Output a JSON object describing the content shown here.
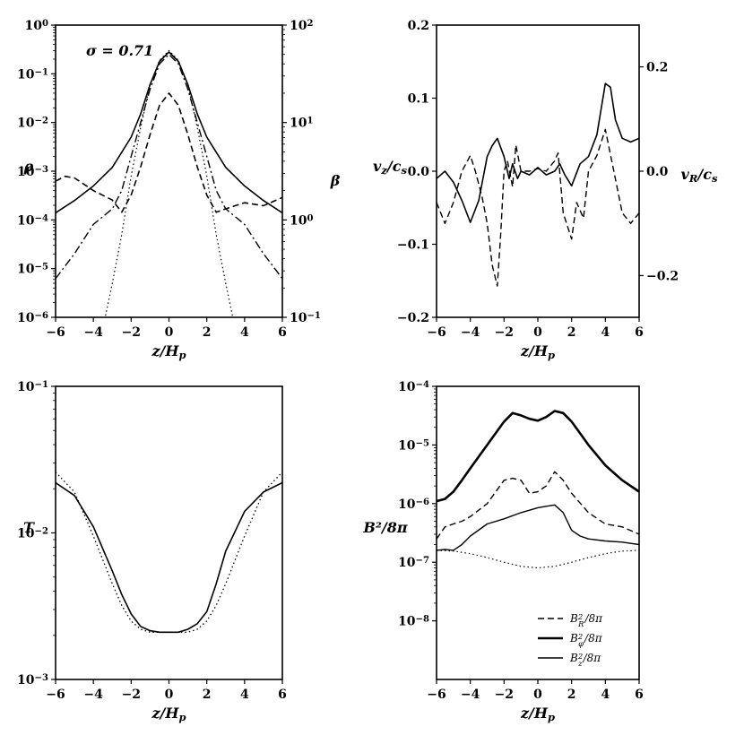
{
  "chart_data": [
    {
      "id": "density_beta",
      "type": "line",
      "xlabel": "z/H_p",
      "ylabel": "ρ",
      "ylabel_right": "β",
      "annotation": "σ = 0.71",
      "xlim": [
        -6,
        6
      ],
      "xticks": [
        -6,
        -4,
        -2,
        0,
        2,
        4,
        6
      ],
      "xtick_labels": [
        "−6",
        "−4",
        "−2",
        "0",
        "2",
        "4",
        "6"
      ],
      "yscale": "log",
      "ylim_exp": [
        -6,
        0
      ],
      "yticks_exp": [
        -6,
        -5,
        -4,
        -3,
        -2,
        -1,
        0
      ],
      "ytick_labels": [
        "10^-6",
        "10^-5",
        "10^-4",
        "10^-3",
        "10^-2",
        "10^-1",
        "10^0"
      ],
      "y2scale": "log",
      "y2lim_exp": [
        -1,
        2
      ],
      "y2ticks_exp": [
        -1,
        0,
        1,
        2
      ],
      "y2tick_labels": [
        "10^-1",
        "10^0",
        "10^1",
        "10^2"
      ],
      "series": [
        {
          "name": "rho",
          "style": "solid",
          "width": 1.6,
          "axis": "left",
          "log": true,
          "x": [
            -6,
            -5,
            -4,
            -3,
            -2,
            -1.5,
            -1,
            -0.5,
            0,
            0.5,
            1,
            1.5,
            2,
            3,
            4,
            5,
            6
          ],
          "y": [
            0.00014,
            0.00025,
            0.0005,
            0.0012,
            0.005,
            0.015,
            0.06,
            0.18,
            0.28,
            0.18,
            0.06,
            0.015,
            0.005,
            0.0012,
            0.0005,
            0.00025,
            0.00014
          ]
        },
        {
          "name": "rho_initial",
          "style": "dotted",
          "width": 1.2,
          "axis": "left",
          "log": true,
          "x": [
            -3.4,
            -3,
            -2.5,
            -2,
            -1.5,
            -1,
            -0.5,
            0,
            0.5,
            1,
            1.5,
            2,
            2.5,
            3,
            3.4
          ],
          "y": [
            9e-07,
            5e-06,
            5e-05,
            0.0008,
            0.0078,
            0.06,
            0.19,
            0.3,
            0.19,
            0.06,
            0.0078,
            0.0008,
            5e-05,
            5e-06,
            9e-07
          ]
        },
        {
          "name": "beta",
          "style": "dashed",
          "width": 1.6,
          "axis": "right",
          "log": true,
          "x": [
            -6,
            -5.5,
            -5,
            -4,
            -3,
            -2.5,
            -2,
            -1.5,
            -1,
            -0.5,
            0,
            0.5,
            1,
            1.5,
            2,
            2.5,
            3,
            3.5,
            4,
            5,
            6
          ],
          "y": [
            2.5,
            2.8,
            2.7,
            2.0,
            1.6,
            1.2,
            1.8,
            3.5,
            7.5,
            15,
            20,
            15,
            7.5,
            3.5,
            1.8,
            1.2,
            1.3,
            1.4,
            1.5,
            1.4,
            1.7
          ]
        },
        {
          "name": "beta_initial",
          "style": "dashdot",
          "width": 1.4,
          "axis": "right",
          "log": true,
          "x": [
            -6,
            -5,
            -4,
            -3,
            -2.5,
            -2,
            -1.5,
            -1,
            -0.5,
            0,
            0.5,
            1,
            1.5,
            2,
            2.5,
            3,
            4,
            5,
            6
          ],
          "y": [
            0.25,
            0.45,
            0.9,
            1.3,
            2.0,
            4.5,
            10,
            22,
            40,
            50,
            40,
            22,
            10,
            4.5,
            2.0,
            1.3,
            0.9,
            0.45,
            0.25
          ]
        }
      ]
    },
    {
      "id": "velocity",
      "type": "line",
      "xlabel": "z/H_p",
      "ylabel": "v_z/c_s",
      "ylabel_right": "v_R/c_s",
      "xlim": [
        -6,
        6
      ],
      "xticks": [
        -6,
        -4,
        -2,
        0,
        2,
        4,
        6
      ],
      "xtick_labels": [
        "−6",
        "−4",
        "−2",
        "0",
        "2",
        "4",
        "6"
      ],
      "ylim": [
        -0.2,
        0.2
      ],
      "yticks": [
        -0.2,
        -0.1,
        0.0,
        0.1,
        0.2
      ],
      "ytick_labels": [
        "−0.2",
        "−0.1",
        "0.0",
        "0.1",
        "0.2"
      ],
      "y2lim": [
        -0.28,
        0.28
      ],
      "y2ticks": [
        -0.2,
        0.0,
        0.2
      ],
      "y2tick_labels": [
        "−0.2",
        "0.0",
        "0.2"
      ],
      "series": [
        {
          "name": "v_z",
          "style": "solid",
          "width": 1.6,
          "axis": "left",
          "x": [
            -6,
            -5.5,
            -5,
            -4.5,
            -4,
            -3.5,
            -3,
            -2.7,
            -2.4,
            -2,
            -1.7,
            -1.5,
            -1.2,
            -1,
            -0.5,
            0,
            0.5,
            1,
            1.3,
            1.6,
            2,
            2.5,
            3,
            3.5,
            4,
            4.3,
            4.6,
            5,
            5.5,
            6
          ],
          "y": [
            -0.01,
            0.0,
            -0.015,
            -0.04,
            -0.07,
            -0.04,
            0.02,
            0.035,
            0.045,
            0.02,
            -0.01,
            0.01,
            -0.01,
            0.0,
            -0.005,
            0.005,
            -0.005,
            0.0,
            0.01,
            -0.005,
            -0.02,
            0.01,
            0.02,
            0.05,
            0.12,
            0.115,
            0.07,
            0.045,
            0.04,
            0.045
          ]
        },
        {
          "name": "v_R",
          "style": "dashed",
          "width": 1.4,
          "axis": "right",
          "x": [
            -6,
            -5.5,
            -5,
            -4.5,
            -4,
            -3.7,
            -3.3,
            -3,
            -2.7,
            -2.4,
            -2.2,
            -2,
            -1.8,
            -1.5,
            -1.3,
            -1,
            -0.5,
            0,
            0.5,
            1,
            1.2,
            1.5,
            2,
            2.3,
            2.7,
            3,
            3.5,
            4,
            4.5,
            5,
            5.5,
            6
          ],
          "y": [
            -0.06,
            -0.1,
            -0.06,
            0.0,
            0.03,
            0.0,
            -0.05,
            -0.1,
            -0.18,
            -0.22,
            -0.12,
            0.0,
            0.02,
            -0.03,
            0.05,
            0.0,
            0.0,
            0.005,
            0.0,
            0.02,
            0.035,
            -0.08,
            -0.13,
            -0.06,
            -0.09,
            0.0,
            0.03,
            0.08,
            0.0,
            -0.08,
            -0.1,
            -0.08
          ]
        }
      ]
    },
    {
      "id": "temperature",
      "type": "line",
      "xlabel": "z/H_p",
      "ylabel": "T",
      "xlim": [
        -6,
        6
      ],
      "xticks": [
        -6,
        -4,
        -2,
        0,
        2,
        4,
        6
      ],
      "xtick_labels": [
        "−6",
        "−4",
        "−2",
        "0",
        "2",
        "4",
        "6"
      ],
      "yscale": "log",
      "ylim_exp": [
        -3,
        -1
      ],
      "yticks_exp": [
        -3,
        -2,
        -1
      ],
      "ytick_labels": [
        "10^-3",
        "10^-2",
        "10^-1"
      ],
      "series": [
        {
          "name": "T",
          "style": "solid",
          "width": 1.6,
          "axis": "left",
          "log": true,
          "x": [
            -6,
            -5,
            -4,
            -3,
            -2.5,
            -2,
            -1.5,
            -1,
            -0.5,
            0,
            0.5,
            1,
            1.5,
            2,
            2.5,
            3,
            4,
            5,
            6
          ],
          "y": [
            0.022,
            0.018,
            0.011,
            0.0055,
            0.0038,
            0.0028,
            0.0023,
            0.00215,
            0.0021,
            0.0021,
            0.0021,
            0.0022,
            0.0024,
            0.0029,
            0.0045,
            0.0075,
            0.014,
            0.019,
            0.022
          ]
        },
        {
          "name": "T_initial",
          "style": "dotted",
          "width": 1.3,
          "axis": "left",
          "log": true,
          "x": [
            -6,
            -5,
            -4,
            -3,
            -2.5,
            -2,
            -1.5,
            -1,
            -0.5,
            0,
            0.5,
            1,
            1.5,
            2,
            2.5,
            3,
            4,
            5,
            6
          ],
          "y": [
            0.026,
            0.019,
            0.0095,
            0.0045,
            0.0032,
            0.0025,
            0.0022,
            0.0021,
            0.0021,
            0.0021,
            0.0021,
            0.0021,
            0.0022,
            0.0025,
            0.0032,
            0.0045,
            0.0095,
            0.019,
            0.026
          ]
        }
      ]
    },
    {
      "id": "magnetic_energy",
      "type": "line",
      "xlabel": "z/H_p",
      "ylabel": "B²/8π",
      "xlim": [
        -6,
        6
      ],
      "xticks": [
        -6,
        -4,
        -2,
        0,
        2,
        4,
        6
      ],
      "xtick_labels": [
        "−6",
        "−4",
        "−2",
        "0",
        "2",
        "4",
        "6"
      ],
      "yscale": "log",
      "ylim_exp": [
        -9,
        -4
      ],
      "yticks_exp": [
        -8,
        -7,
        -6,
        -5,
        -4
      ],
      "ytick_labels": [
        "10^-8",
        "10^-7",
        "10^-6",
        "10^-5",
        "10^-4"
      ],
      "legend_position": "lower-right",
      "series": [
        {
          "name": "B_R²/8π",
          "legend": true,
          "style": "dashed",
          "width": 1.4,
          "axis": "left",
          "log": true,
          "x": [
            -6,
            -5.5,
            -5,
            -4.5,
            -4,
            -3,
            -2,
            -1.5,
            -1,
            -0.5,
            0,
            0.5,
            1,
            1.5,
            2,
            3,
            4,
            5,
            6
          ],
          "y": [
            2.5e-07,
            4e-07,
            4.5e-07,
            5e-07,
            6e-07,
            1e-06,
            2.5e-06,
            2.7e-06,
            2.5e-06,
            1.5e-06,
            1.6e-06,
            2e-06,
            3.5e-06,
            2.5e-06,
            1.5e-06,
            7e-07,
            4.5e-07,
            4e-07,
            3e-07
          ]
        },
        {
          "name": "B_φ²/8π",
          "legend": true,
          "style": "solid",
          "width": 2.6,
          "axis": "left",
          "log": true,
          "x": [
            -6,
            -5.5,
            -5,
            -4.5,
            -4,
            -3,
            -2,
            -1.5,
            -1,
            -0.5,
            0,
            0.5,
            1,
            1.5,
            2,
            3,
            4,
            5,
            6
          ],
          "y": [
            1.1e-06,
            1.2e-06,
            1.6e-06,
            2.5e-06,
            4e-06,
            1e-05,
            2.5e-05,
            3.5e-05,
            3.2e-05,
            2.8e-05,
            2.6e-05,
            3e-05,
            3.8e-05,
            3.5e-05,
            2.5e-05,
            1e-05,
            4.5e-06,
            2.5e-06,
            1.6e-06
          ]
        },
        {
          "name": "B_z²/8π",
          "legend": true,
          "style": "solid",
          "width": 1.4,
          "axis": "left",
          "log": true,
          "x": [
            -6,
            -5.5,
            -5,
            -4.5,
            -4,
            -3,
            -2,
            -1,
            0,
            0.5,
            1,
            1.5,
            2,
            2.5,
            3,
            4,
            5,
            6
          ],
          "y": [
            1.6e-07,
            1.65e-07,
            1.6e-07,
            2e-07,
            2.8e-07,
            4.5e-07,
            5.5e-07,
            7e-07,
            8.5e-07,
            9e-07,
            9.5e-07,
            7e-07,
            3.5e-07,
            2.8e-07,
            2.5e-07,
            2.3e-07,
            2.2e-07,
            2e-07
          ]
        },
        {
          "name": "initial",
          "legend": false,
          "style": "dotted",
          "width": 1.2,
          "axis": "left",
          "log": true,
          "x": [
            -6,
            -5,
            -4,
            -3,
            -2,
            -1,
            0,
            1,
            2,
            3,
            4,
            5,
            6
          ],
          "y": [
            1.6e-07,
            1.55e-07,
            1.4e-07,
            1.2e-07,
            1e-07,
            8.5e-08,
            8e-08,
            8.5e-08,
            1e-07,
            1.2e-07,
            1.4e-07,
            1.55e-07,
            1.6e-07
          ]
        }
      ]
    }
  ]
}
